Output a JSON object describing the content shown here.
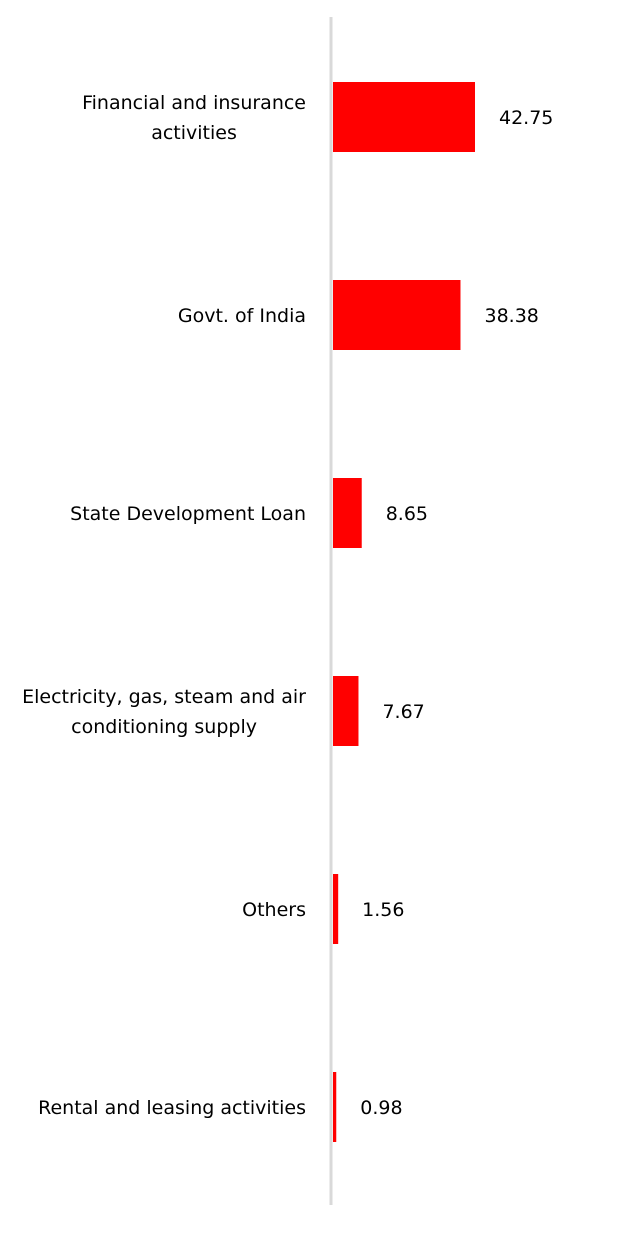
{
  "chart_data": {
    "type": "bar",
    "orientation": "horizontal",
    "categories": [
      [
        "Financial and insurance",
        "activities"
      ],
      [
        "Govt. of India"
      ],
      [
        "State Development Loan"
      ],
      [
        "Electricity, gas, steam and air",
        "conditioning supply"
      ],
      [
        "Others"
      ],
      [
        "Rental and leasing activities"
      ]
    ],
    "values": [
      42.75,
      38.38,
      8.65,
      7.67,
      1.56,
      0.98
    ],
    "value_labels": [
      "42.75",
      "38.38",
      "8.65",
      "7.67",
      "1.56",
      "0.98"
    ],
    "title": "",
    "xlabel": "",
    "ylabel": "",
    "xlim": [
      0,
      50
    ],
    "grid": false,
    "legend": "none",
    "bar_color": "#ff0000",
    "axis_color": "#d9d9d9"
  }
}
